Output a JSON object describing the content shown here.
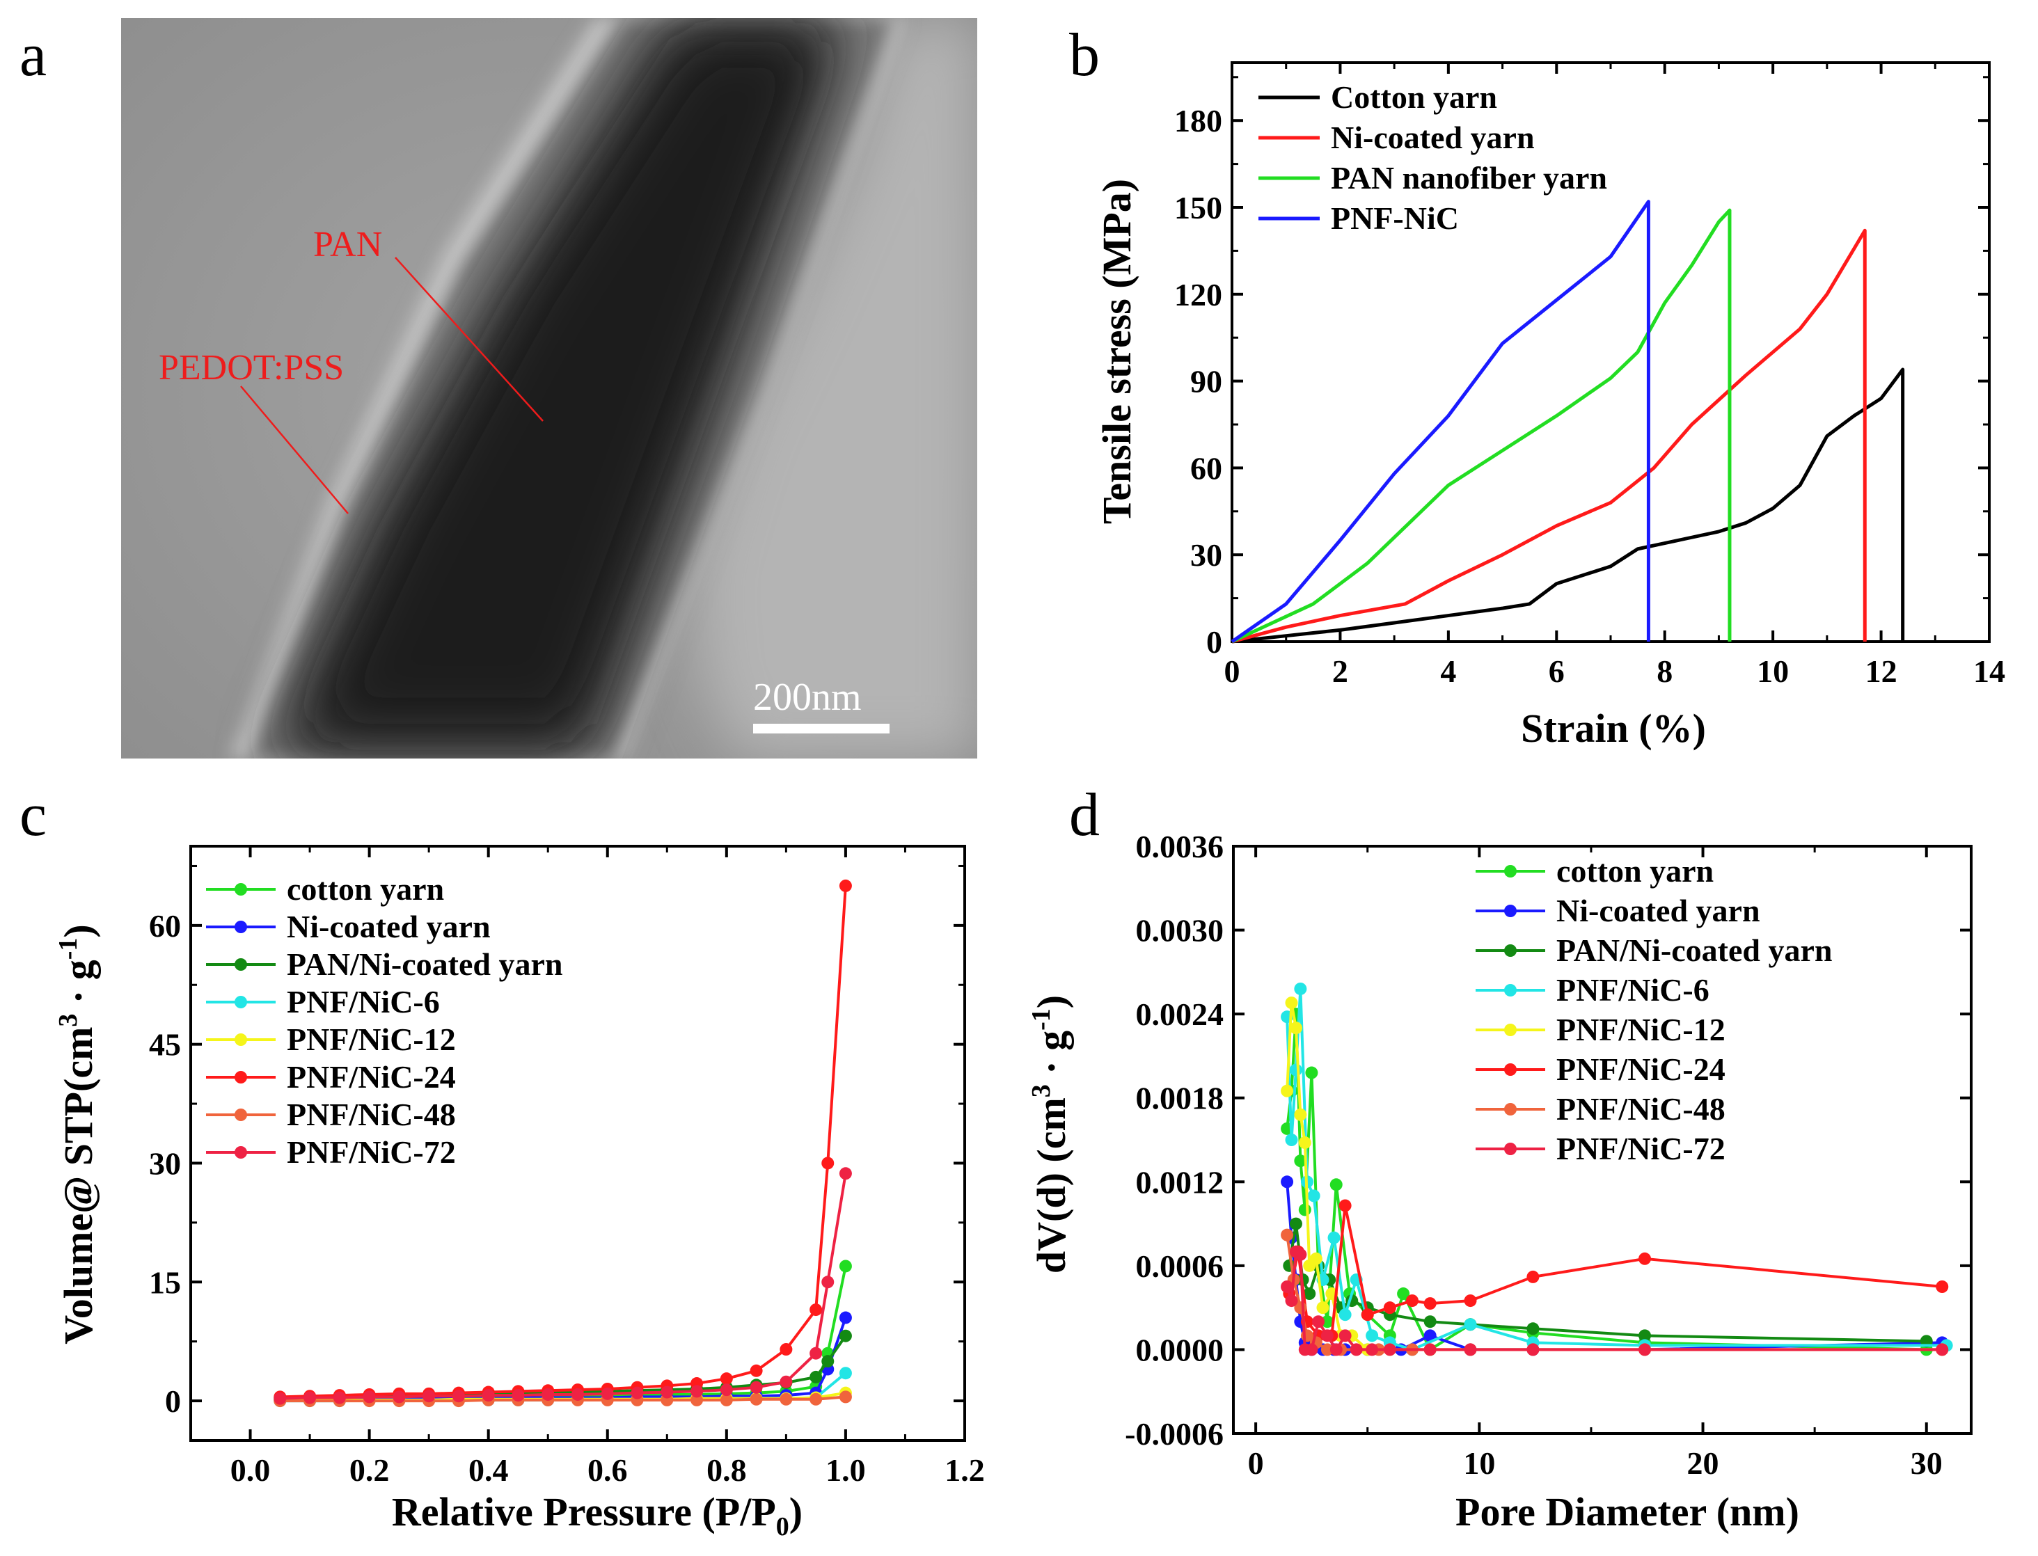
{
  "panels": {
    "a": {
      "letter": "a",
      "annotations": [
        {
          "id": "pan",
          "label": "PAN"
        },
        {
          "id": "pedot",
          "label": "PEDOT:PSS"
        }
      ],
      "scale_bar": "200nm"
    },
    "b": {
      "letter": "b"
    },
    "c": {
      "letter": "c"
    },
    "d": {
      "letter": "d"
    }
  },
  "chart_data": [
    {
      "panel": "b",
      "type": "line",
      "xlabel": "Strain (%)",
      "ylabel": "Tensile stress (MPa)",
      "xlim": [
        0,
        14
      ],
      "ylim": [
        0,
        200
      ],
      "xticks": [
        0,
        2,
        4,
        6,
        8,
        10,
        12,
        14
      ],
      "yticks": [
        0,
        30,
        60,
        90,
        120,
        150,
        180
      ],
      "legend_position": "top-left",
      "series": [
        {
          "name": "Cotton yarn",
          "color": "#000000",
          "x": [
            0,
            1,
            2,
            3,
            4,
            5,
            5.5,
            6,
            7,
            7.5,
            8,
            9,
            9.5,
            10,
            10.5,
            11,
            11.5,
            12,
            12.4,
            12.4
          ],
          "y": [
            0,
            2,
            4,
            6.5,
            9,
            11.5,
            13,
            20,
            26,
            32,
            34,
            38,
            41,
            46,
            54,
            71,
            78,
            84,
            94,
            0
          ]
        },
        {
          "name": "Ni-coated yarn",
          "color": "#ff1a1a",
          "x": [
            0,
            1,
            2,
            3.2,
            4,
            5,
            6,
            7,
            7.8,
            8.5,
            9.5,
            10.5,
            11,
            11.7,
            11.7
          ],
          "y": [
            0,
            5,
            9,
            13,
            21,
            30,
            40,
            48,
            60,
            75,
            92,
            108,
            120,
            142,
            0
          ]
        },
        {
          "name": "PAN nanofiber yarn",
          "color": "#22dd22",
          "x": [
            0,
            1.5,
            2.5,
            4,
            5,
            6,
            7,
            7.5,
            8,
            8.5,
            9,
            9.2,
            9.2
          ],
          "y": [
            0,
            13,
            27,
            54,
            66,
            78,
            91,
            100,
            117,
            130,
            145,
            149,
            0
          ]
        },
        {
          "name": "PNF-NiC",
          "color": "#1a1aff",
          "x": [
            0,
            1,
            2,
            3,
            4,
            5,
            6,
            7,
            7.7,
            7.7
          ],
          "y": [
            0,
            13,
            35,
            58,
            78,
            103,
            118,
            133,
            152,
            0
          ]
        }
      ]
    },
    {
      "panel": "c",
      "type": "scatter",
      "xlabel": "Relative Pressure (P/P0)",
      "xlabel_main": "Relative Pressure (P/P",
      "xlabel_sub": "0",
      "xlabel_end": ")",
      "ylabel": "Volume@ STP(cm3 · g-1)",
      "ylabel_main": "Volume@ STP(cm",
      "ylabel_sup1": "3",
      "ylabel_mid": " · g",
      "ylabel_sup2": "-1",
      "ylabel_end": ")",
      "xlim": [
        -0.1,
        1.2
      ],
      "ylim": [
        -5,
        70
      ],
      "xticks": [
        0.0,
        0.2,
        0.4,
        0.6,
        0.8,
        1.0,
        1.2
      ],
      "yticks": [
        0,
        15,
        30,
        45,
        60
      ],
      "legend_position": "top-left",
      "series": [
        {
          "name": "cotton yarn",
          "color": "#22dd22",
          "x": [
            0.05,
            0.1,
            0.15,
            0.2,
            0.25,
            0.3,
            0.35,
            0.4,
            0.45,
            0.5,
            0.55,
            0.6,
            0.65,
            0.7,
            0.75,
            0.8,
            0.85,
            0.9,
            0.95,
            0.97,
            1.0
          ],
          "y": [
            0.2,
            0.3,
            0.3,
            0.4,
            0.4,
            0.5,
            0.5,
            0.5,
            0.6,
            0.6,
            0.6,
            0.7,
            0.7,
            0.8,
            0.8,
            0.9,
            1.0,
            1.2,
            1.8,
            6,
            17
          ]
        },
        {
          "name": "Ni-coated yarn",
          "color": "#1a1aff",
          "x": [
            0.05,
            0.1,
            0.15,
            0.2,
            0.25,
            0.3,
            0.35,
            0.4,
            0.45,
            0.5,
            0.55,
            0.6,
            0.65,
            0.7,
            0.75,
            0.8,
            0.85,
            0.9,
            0.95,
            0.97,
            1.0
          ],
          "y": [
            0.1,
            0.2,
            0.2,
            0.2,
            0.3,
            0.3,
            0.3,
            0.3,
            0.4,
            0.4,
            0.4,
            0.4,
            0.5,
            0.5,
            0.5,
            0.6,
            0.6,
            0.7,
            1.0,
            4,
            10.5
          ]
        },
        {
          "name": "PAN/Ni-coated yarn",
          "color": "#138a13",
          "x": [
            0.05,
            0.1,
            0.15,
            0.2,
            0.25,
            0.3,
            0.35,
            0.4,
            0.45,
            0.5,
            0.55,
            0.6,
            0.65,
            0.7,
            0.75,
            0.8,
            0.85,
            0.9,
            0.95,
            0.97,
            1.0
          ],
          "y": [
            0.4,
            0.5,
            0.6,
            0.7,
            0.7,
            0.8,
            0.9,
            0.9,
            1.0,
            1.0,
            1.1,
            1.2,
            1.3,
            1.4,
            1.5,
            1.7,
            2.0,
            2.3,
            3.0,
            5,
            8.2
          ]
        },
        {
          "name": "PNF/NiC-6",
          "color": "#22e5e5",
          "x": [
            0.05,
            0.1,
            0.15,
            0.2,
            0.25,
            0.3,
            0.35,
            0.4,
            0.45,
            0.5,
            0.55,
            0.6,
            0.65,
            0.7,
            0.75,
            0.8,
            0.85,
            0.9,
            0.95,
            1.0
          ],
          "y": [
            0.0,
            0.0,
            0.0,
            0.1,
            0.1,
            0.1,
            0.1,
            0.1,
            0.1,
            0.1,
            0.2,
            0.2,
            0.2,
            0.2,
            0.2,
            0.3,
            0.3,
            0.3,
            0.4,
            3.5
          ]
        },
        {
          "name": "PNF/NiC-12",
          "color": "#f5f51a",
          "x": [
            0.05,
            0.1,
            0.15,
            0.2,
            0.25,
            0.3,
            0.35,
            0.4,
            0.45,
            0.5,
            0.55,
            0.6,
            0.65,
            0.7,
            0.75,
            0.8,
            0.85,
            0.9,
            0.95,
            1.0
          ],
          "y": [
            0.1,
            0.1,
            0.1,
            0.1,
            0.1,
            0.1,
            0.2,
            0.2,
            0.2,
            0.2,
            0.2,
            0.2,
            0.2,
            0.2,
            0.3,
            0.3,
            0.3,
            0.3,
            0.4,
            1.0
          ]
        },
        {
          "name": "PNF/NiC-24",
          "color": "#ff1a1a",
          "x": [
            0.05,
            0.1,
            0.15,
            0.2,
            0.25,
            0.3,
            0.35,
            0.4,
            0.45,
            0.5,
            0.55,
            0.6,
            0.65,
            0.7,
            0.75,
            0.8,
            0.85,
            0.9,
            0.95,
            0.97,
            1.0
          ],
          "y": [
            0.5,
            0.6,
            0.7,
            0.8,
            0.9,
            0.9,
            1.0,
            1.1,
            1.2,
            1.3,
            1.4,
            1.5,
            1.7,
            1.9,
            2.2,
            2.8,
            3.8,
            6.5,
            11.5,
            30,
            65
          ]
        },
        {
          "name": "PNF/NiC-48",
          "color": "#f0643c",
          "x": [
            0.05,
            0.1,
            0.15,
            0.2,
            0.25,
            0.3,
            0.35,
            0.4,
            0.45,
            0.5,
            0.55,
            0.6,
            0.65,
            0.7,
            0.75,
            0.8,
            0.85,
            0.9,
            0.95,
            1.0
          ],
          "y": [
            0.0,
            0.0,
            0.0,
            0.0,
            0.0,
            0.0,
            0.0,
            0.1,
            0.1,
            0.1,
            0.1,
            0.1,
            0.1,
            0.1,
            0.1,
            0.1,
            0.2,
            0.2,
            0.2,
            0.5
          ]
        },
        {
          "name": "PNF/NiC-72",
          "color": "#ee2244",
          "x": [
            0.05,
            0.1,
            0.15,
            0.2,
            0.25,
            0.3,
            0.35,
            0.4,
            0.45,
            0.5,
            0.55,
            0.6,
            0.65,
            0.7,
            0.75,
            0.8,
            0.85,
            0.9,
            0.95,
            0.97,
            1.0
          ],
          "y": [
            0.3,
            0.4,
            0.4,
            0.5,
            0.5,
            0.6,
            0.6,
            0.7,
            0.7,
            0.8,
            0.8,
            0.9,
            1.0,
            1.1,
            1.2,
            1.4,
            1.7,
            2.4,
            6,
            15,
            28.7
          ]
        }
      ]
    },
    {
      "panel": "d",
      "type": "scatter",
      "xlabel": "Pore Diameter (nm)",
      "ylabel": "dV(d) (cm3 · g-1)",
      "ylabel_main": "dV(d) (cm",
      "ylabel_sup1": "3",
      "ylabel_mid": " · g",
      "ylabel_sup2": "-1",
      "ylabel_end": ")",
      "xlim": [
        -1,
        32
      ],
      "ylim": [
        -0.0006,
        0.0036
      ],
      "xticks": [
        0,
        10,
        20,
        30
      ],
      "yticks": [
        "-0.0006",
        "0.0000",
        "0.0006",
        "0.0012",
        "0.0018",
        "0.0024",
        "0.0030",
        "0.0036"
      ],
      "legend_position": "top-right",
      "series": [
        {
          "name": "cotton yarn",
          "color": "#22dd22",
          "x": [
            1.4,
            1.6,
            1.8,
            2.0,
            2.2,
            2.5,
            2.8,
            3.2,
            3.6,
            4.2,
            5.0,
            6.0,
            6.6,
            7.8,
            9.6,
            12.4,
            17.4,
            30.0
          ],
          "y": [
            0.00158,
            0.00185,
            0.0024,
            0.00135,
            0.001,
            0.00198,
            0.0006,
            0.0002,
            0.00118,
            0.0004,
            0.00025,
            0.0001,
            0.0004,
            0.0,
            0.00018,
            0.00012,
            5e-05,
            0.0
          ]
        },
        {
          "name": "Ni-coated yarn",
          "color": "#1a1aff",
          "x": [
            1.4,
            1.6,
            1.8,
            2.0,
            2.2,
            2.5,
            3.0,
            3.5,
            4.0,
            5.0,
            6.5,
            7.8,
            9.6,
            12.4,
            17.4,
            30.7
          ],
          "y": [
            0.0012,
            0.0008,
            0.0005,
            0.0002,
            5e-05,
            0.0,
            0.0,
            0.0,
            0.0,
            0.0,
            0.0,
            0.0001,
            0.0,
            0.0,
            0.0,
            5e-05
          ]
        },
        {
          "name": "PAN/Ni-coated yarn",
          "color": "#138a13",
          "x": [
            1.5,
            1.8,
            2.1,
            2.4,
            2.8,
            3.3,
            3.8,
            4.3,
            5.0,
            6.0,
            7.8,
            9.6,
            12.4,
            17.4,
            30.0
          ],
          "y": [
            0.0006,
            0.0009,
            0.0005,
            0.0004,
            0.0006,
            0.0005,
            0.0003,
            0.00035,
            0.0003,
            0.00025,
            0.0002,
            0.00018,
            0.00015,
            0.0001,
            6e-05
          ]
        },
        {
          "name": "PNF/NiC-6",
          "color": "#22e5e5",
          "x": [
            1.4,
            1.6,
            1.8,
            2.0,
            2.3,
            2.6,
            3.0,
            3.5,
            4.0,
            4.5,
            5.2,
            6.0,
            7.0,
            9.6,
            12.4,
            17.4,
            30.9
          ],
          "y": [
            0.00238,
            0.0015,
            0.002,
            0.00258,
            0.0012,
            0.0011,
            0.0005,
            0.0008,
            0.00025,
            0.0005,
            0.0001,
            5e-05,
            0.0,
            0.00018,
            5e-05,
            3e-05,
            3e-05
          ]
        },
        {
          "name": "PNF/NiC-12",
          "color": "#f5f51a",
          "x": [
            1.4,
            1.6,
            1.8,
            2.0,
            2.2,
            2.4,
            2.7,
            3.0,
            3.4,
            3.8,
            4.3,
            5.0,
            6.0,
            7.8,
            9.6,
            17.4,
            30.7
          ],
          "y": [
            0.00185,
            0.00248,
            0.0023,
            0.00168,
            0.00148,
            0.0006,
            0.00065,
            0.0003,
            0.0004,
            0.0001,
            0.0001,
            0.0,
            0.0,
            0.0,
            0.0,
            0.0,
            0.0
          ]
        },
        {
          "name": "PNF/NiC-24",
          "color": "#ff1a1a",
          "x": [
            1.5,
            1.9,
            2.3,
            2.8,
            3.4,
            4.0,
            5.0,
            6.0,
            7.0,
            7.8,
            9.6,
            12.4,
            17.4,
            30.7
          ],
          "y": [
            0.0004,
            0.0007,
            0.0002,
            0.0001,
            0.0001,
            0.00103,
            0.00025,
            0.0003,
            0.00035,
            0.00033,
            0.00035,
            0.00052,
            0.00065,
            0.00045
          ]
        },
        {
          "name": "PNF/NiC-48",
          "color": "#f0643c",
          "x": [
            1.4,
            1.7,
            2.0,
            2.3,
            2.7,
            3.2,
            3.8,
            4.5,
            5.5,
            7.0,
            9.6,
            12.4,
            17.4,
            30.7
          ],
          "y": [
            0.00082,
            0.0005,
            0.0003,
            0.0001,
            5e-05,
            0.0,
            0.0,
            0.0,
            0.0,
            0.0,
            0.0,
            0.0,
            0.0,
            0.0
          ]
        },
        {
          "name": "PNF/NiC-72",
          "color": "#ee2244",
          "x": [
            1.4,
            1.6,
            1.8,
            2.0,
            2.2,
            2.5,
            2.8,
            3.2,
            3.6,
            4.0,
            4.5,
            5.2,
            6.0,
            7.8,
            9.6,
            12.4,
            17.4,
            30.7
          ],
          "y": [
            0.00045,
            0.00035,
            0.0007,
            0.00068,
            0.0,
            0.0,
            0.0002,
            0.0001,
            0.0,
            0.0001,
            0.0,
            0.0,
            0.0,
            0.0,
            0.0,
            0.0,
            0.0,
            0.0
          ]
        }
      ]
    }
  ]
}
